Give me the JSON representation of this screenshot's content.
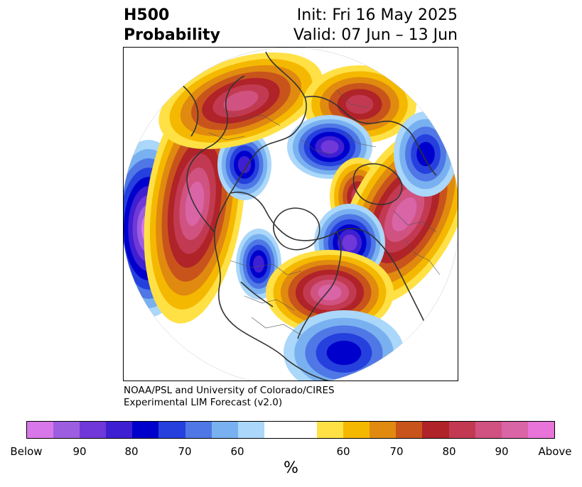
{
  "header": {
    "title_line1": "H500",
    "title_line2": "Probability",
    "init_text": "Init: Fri 16 May 2025",
    "valid_text": "Valid: 07 Jun – 13 Jun"
  },
  "credit": {
    "line1": "NOAA/PSL and University of Colorado/CIRES",
    "line2": "Experimental LIM Forecast (v2.0)"
  },
  "colorbar": {
    "colors": [
      "#d877e9",
      "#9d5de0",
      "#7038d8",
      "#3f1fd2",
      "#0000cc",
      "#2540dd",
      "#4f77e6",
      "#79b1f0",
      "#aad7fa",
      "#ffffff",
      "#ffffff",
      "#ffe145",
      "#f5b800",
      "#e08a10",
      "#c8541c",
      "#b02328",
      "#c23a52",
      "#d05280",
      "#d964a6",
      "#e874d9"
    ],
    "tick_labels": [
      "Below",
      "90",
      "80",
      "70",
      "60",
      "60",
      "70",
      "80",
      "90",
      "Above"
    ],
    "unit_label": "%"
  },
  "map": {
    "projection": "polar-stereographic-north",
    "anomalies": [
      {
        "kind": "below",
        "level": 9,
        "name": "west-pacific-low"
      },
      {
        "kind": "above",
        "level": 8,
        "name": "north-pacific-high"
      },
      {
        "kind": "below",
        "level": 6,
        "name": "east-siberia-low"
      },
      {
        "kind": "above",
        "level": 7,
        "name": "north-siberia-high"
      },
      {
        "kind": "above",
        "level": 6,
        "name": "central-siberia-high"
      },
      {
        "kind": "below",
        "level": 7,
        "name": "kara-sea-low"
      },
      {
        "kind": "above",
        "level": 6,
        "name": "west-russia-high"
      },
      {
        "kind": "above",
        "level": 8,
        "name": "europe-high"
      },
      {
        "kind": "below",
        "level": 5,
        "name": "mediterranean-low"
      },
      {
        "kind": "below",
        "level": 6,
        "name": "canada-low"
      },
      {
        "kind": "below",
        "level": 7,
        "name": "greenland-low"
      },
      {
        "kind": "above",
        "level": 8,
        "name": "north-america-high"
      },
      {
        "kind": "below",
        "level": 5,
        "name": "atlantic-low"
      }
    ]
  }
}
